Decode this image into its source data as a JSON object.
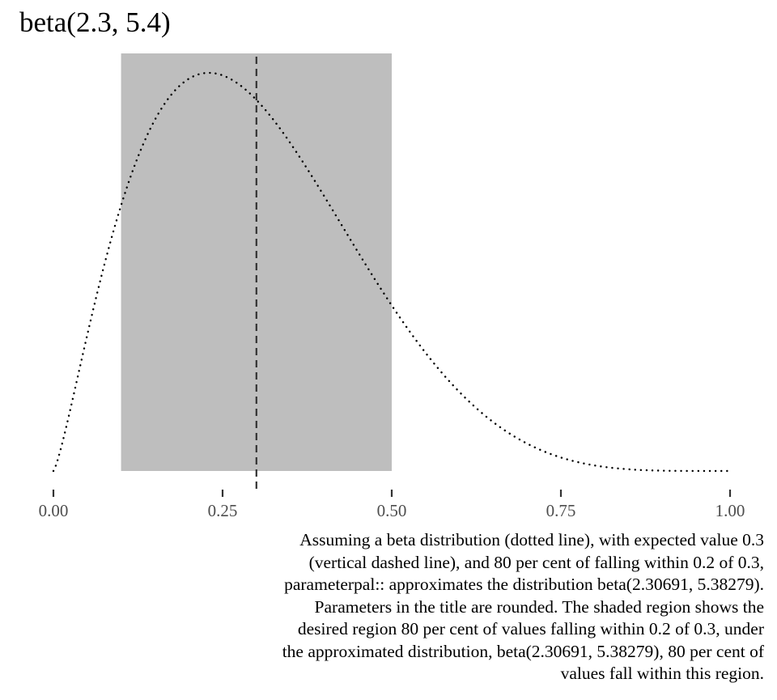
{
  "chart_data": {
    "type": "line",
    "title": "beta(2.3, 5.4)",
    "distribution": {
      "family": "beta",
      "alpha": 2.30691,
      "beta": 5.38279
    },
    "expected_value": 0.3,
    "shaded_region": [
      0.1,
      0.5
    ],
    "xlim": [
      0,
      1
    ],
    "x_ticks": [
      0,
      0.25,
      0.5,
      0.75,
      1
    ],
    "x_tick_labels": [
      "0.00",
      "0.25",
      "0.50",
      "0.75",
      "1.00"
    ],
    "xlabel": "",
    "ylabel": "",
    "grid": false,
    "line_style": "dotted",
    "marker_style": "dashed",
    "colors": {
      "shade": "#bebebe",
      "curve": "#000000",
      "marker": "#333333",
      "ticks": "#333333",
      "tick_text": "#4d4d4d"
    },
    "caption_lines": [
      "Assuming a beta distribution (dotted line), with expected value 0.3",
      "(vertical dashed line), and 80 per cent of falling within 0.2 of 0.3,",
      "parameterpal:: approximates the distribution beta(2.30691, 5.38279).",
      "Parameters in the title are rounded. The shaded region shows the",
      "desired region 80 per cent of values falling within 0.2 of 0.3, under",
      "the approximated distribution, beta(2.30691, 5.38279), 80 per cent of",
      "values fall within this region."
    ]
  }
}
